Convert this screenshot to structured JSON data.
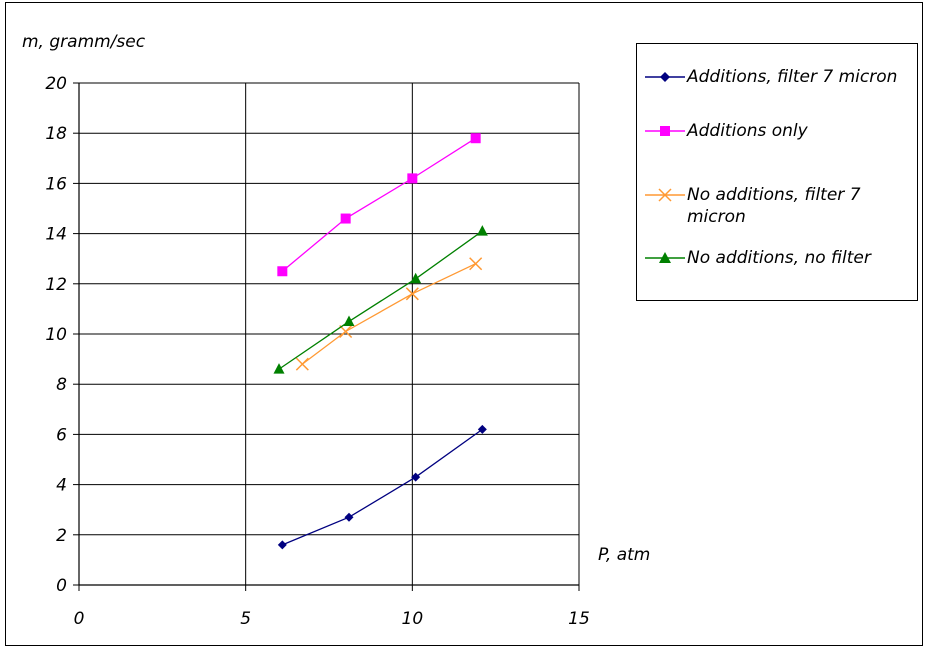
{
  "chart_data": {
    "type": "line",
    "title": "",
    "xlabel": "P, atm",
    "ylabel": "m, gramm/sec",
    "xlim": [
      0,
      15
    ],
    "ylim": [
      0,
      20
    ],
    "xticks": [
      0,
      5,
      10,
      15
    ],
    "yticks": [
      0,
      2,
      4,
      6,
      8,
      10,
      12,
      14,
      16,
      18,
      20
    ],
    "grid": true,
    "legend_position": "top-right",
    "series": [
      {
        "name": "Additions, filter 7 micron",
        "color": "#000080",
        "marker": "diamond",
        "x": [
          6.1,
          8.1,
          10.1,
          12.1
        ],
        "y": [
          1.6,
          2.7,
          4.3,
          6.2
        ]
      },
      {
        "name": "Additions only",
        "color": "#ff00ff",
        "marker": "square",
        "x": [
          6.1,
          8.0,
          10.0,
          11.9
        ],
        "y": [
          12.5,
          14.6,
          16.2,
          17.8
        ]
      },
      {
        "name": "No additions, filter 7 micron",
        "color": "#ff9933",
        "marker": "x",
        "x": [
          6.7,
          8.0,
          10.0,
          11.9
        ],
        "y": [
          8.8,
          10.1,
          11.6,
          12.8
        ]
      },
      {
        "name": "No additions, no filter",
        "color": "#008000",
        "marker": "triangle",
        "x": [
          6.0,
          8.1,
          10.1,
          12.1
        ],
        "y": [
          8.6,
          10.5,
          12.2,
          14.1
        ]
      }
    ]
  }
}
